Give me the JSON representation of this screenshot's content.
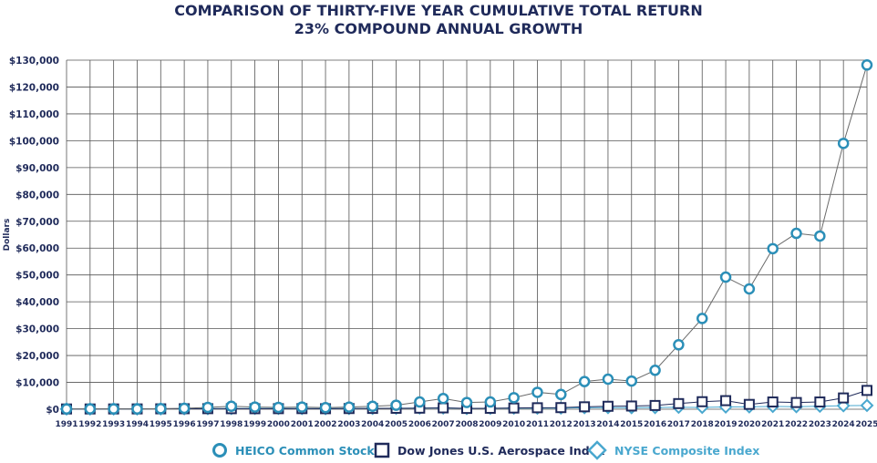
{
  "chart_data": {
    "type": "line",
    "title": "COMPARISON OF THIRTY-FIVE YEAR CUMULATIVE TOTAL RETURN",
    "subtitle": "23% COMPOUND ANNUAL GROWTH",
    "ylabel": "Dollars",
    "xlabel": "",
    "ylim": [
      0,
      130000
    ],
    "yticks": [
      0,
      10000,
      20000,
      30000,
      40000,
      50000,
      60000,
      70000,
      80000,
      90000,
      100000,
      110000,
      120000,
      130000
    ],
    "ytick_labels": [
      "$0",
      "$10,000",
      "$20,000",
      "$30,000",
      "$40,000",
      "$50,000",
      "$60,000",
      "$70,000",
      "$80,000",
      "$90,000",
      "$100,000",
      "$110,000",
      "$120,000",
      "$130,000"
    ],
    "categories": [
      "1991",
      "1992",
      "1993",
      "1994",
      "1995",
      "1996",
      "1997",
      "1998",
      "1999",
      "2000",
      "2001",
      "2002",
      "2003",
      "2004",
      "2005",
      "2006",
      "2007",
      "2008",
      "2009",
      "2010",
      "2011",
      "2012",
      "2013",
      "2014",
      "2015",
      "2016",
      "2017",
      "2018",
      "2019",
      "2020",
      "2021",
      "2022",
      "2023",
      "2024",
      "2025"
    ],
    "grid": true,
    "series": [
      {
        "name": "HEICO Common Stock",
        "marker": "circle",
        "color": "#2b8fb8",
        "values": [
          100,
          130,
          110,
          100,
          200,
          350,
          700,
          1100,
          800,
          700,
          800,
          600,
          800,
          1100,
          1500,
          2700,
          4000,
          2500,
          2700,
          4300,
          6300,
          5500,
          10300,
          11200,
          10500,
          14500,
          24000,
          33800,
          49200,
          44800,
          59800,
          65500,
          64500,
          99000,
          128200
        ]
      },
      {
        "name": "Dow Jones U.S. Aerospace Index",
        "marker": "square",
        "color": "#1f2a5a",
        "values": [
          100,
          100,
          110,
          120,
          150,
          190,
          210,
          200,
          190,
          210,
          230,
          200,
          250,
          300,
          350,
          400,
          500,
          300,
          350,
          450,
          550,
          600,
          900,
          1100,
          1200,
          1400,
          2100,
          2800,
          3200,
          1800,
          2700,
          2500,
          2700,
          4200,
          7000
        ]
      },
      {
        "name": "NYSE Composite Index",
        "marker": "diamond",
        "color": "#4aa8cf",
        "values": [
          100,
          105,
          115,
          112,
          150,
          180,
          230,
          270,
          300,
          300,
          270,
          220,
          280,
          320,
          350,
          420,
          450,
          280,
          350,
          400,
          380,
          440,
          560,
          590,
          560,
          620,
          740,
          680,
          830,
          880,
          1050,
          950,
          1100,
          1300,
          1400
        ]
      }
    ],
    "legend_position": "bottom"
  }
}
